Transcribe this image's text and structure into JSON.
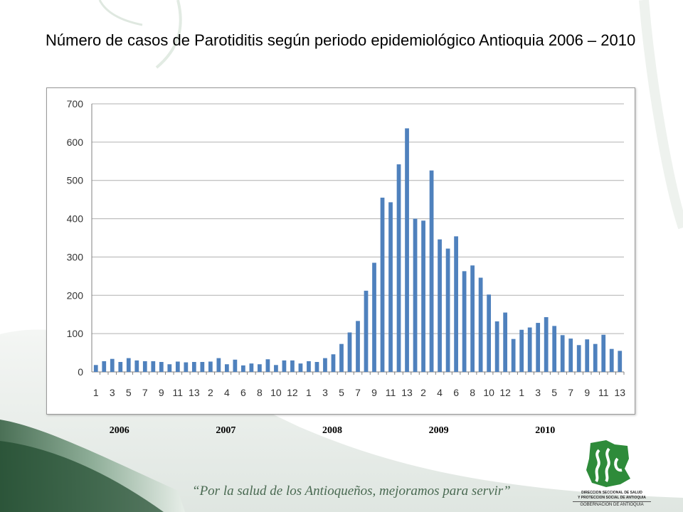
{
  "slide": {
    "title": "Número de casos de Parotiditis según periodo epidemiológico Antioquia 2006 – 2010",
    "slogan": "“Por la salud de los Antioqueños, mejoramos para servir”",
    "logo": {
      "line1": "DIRECCION SECCIONAL DE SALUD",
      "line2": "Y PROTECCION SOCIAL DE ANTIOQUIA",
      "line3": "GOBERNACION DE ANTIOQUIA"
    }
  },
  "colors": {
    "bar": "#4f81bd",
    "grid": "#b0b0b0",
    "axis": "#808080",
    "slogan": "#4a6a52"
  },
  "chart_data": {
    "type": "bar",
    "title": "",
    "xlabel": "",
    "ylabel": "",
    "ylim": [
      0,
      700
    ],
    "yticks": [
      0,
      100,
      200,
      300,
      400,
      500,
      600,
      700
    ],
    "grid": true,
    "legend": "none",
    "year_labels": [
      "2006",
      "2007",
      "2008",
      "2009",
      "2010"
    ],
    "categories": [
      "1",
      "2",
      "3",
      "4",
      "5",
      "6",
      "7",
      "8",
      "9",
      "10",
      "11",
      "12",
      "13",
      "1",
      "2",
      "3",
      "4",
      "5",
      "6",
      "7",
      "8",
      "9",
      "10",
      "11",
      "12",
      "13",
      "1",
      "2",
      "3",
      "4",
      "5",
      "6",
      "7",
      "8",
      "9",
      "10",
      "11",
      "12",
      "13",
      "1",
      "2",
      "3",
      "4",
      "5",
      "6",
      "7",
      "8",
      "9",
      "10",
      "11",
      "12",
      "13",
      "1",
      "2",
      "3",
      "4",
      "5",
      "6",
      "7",
      "8",
      "9",
      "10",
      "11",
      "12",
      "13"
    ],
    "years": [
      "2006",
      "2006",
      "2006",
      "2006",
      "2006",
      "2006",
      "2006",
      "2006",
      "2006",
      "2006",
      "2006",
      "2006",
      "2006",
      "2007",
      "2007",
      "2007",
      "2007",
      "2007",
      "2007",
      "2007",
      "2007",
      "2007",
      "2007",
      "2007",
      "2007",
      "2007",
      "2008",
      "2008",
      "2008",
      "2008",
      "2008",
      "2008",
      "2008",
      "2008",
      "2008",
      "2008",
      "2008",
      "2008",
      "2008",
      "2009",
      "2009",
      "2009",
      "2009",
      "2009",
      "2009",
      "2009",
      "2009",
      "2009",
      "2009",
      "2009",
      "2009",
      "2009",
      "2010",
      "2010",
      "2010",
      "2010",
      "2010",
      "2010",
      "2010",
      "2010",
      "2010",
      "2010",
      "2010",
      "2010",
      "2010"
    ],
    "values": [
      18,
      28,
      34,
      26,
      36,
      30,
      28,
      28,
      26,
      20,
      27,
      25,
      26,
      26,
      27,
      36,
      20,
      32,
      17,
      22,
      20,
      33,
      18,
      30,
      30,
      22,
      28,
      26,
      36,
      46,
      73,
      103,
      133,
      212,
      285,
      455,
      443,
      542,
      636,
      400,
      395,
      526,
      346,
      322,
      354,
      263,
      278,
      246,
      202,
      132,
      155,
      86,
      110,
      116,
      128,
      143,
      120,
      96,
      87,
      70,
      85,
      73,
      97,
      60,
      55
    ]
  }
}
